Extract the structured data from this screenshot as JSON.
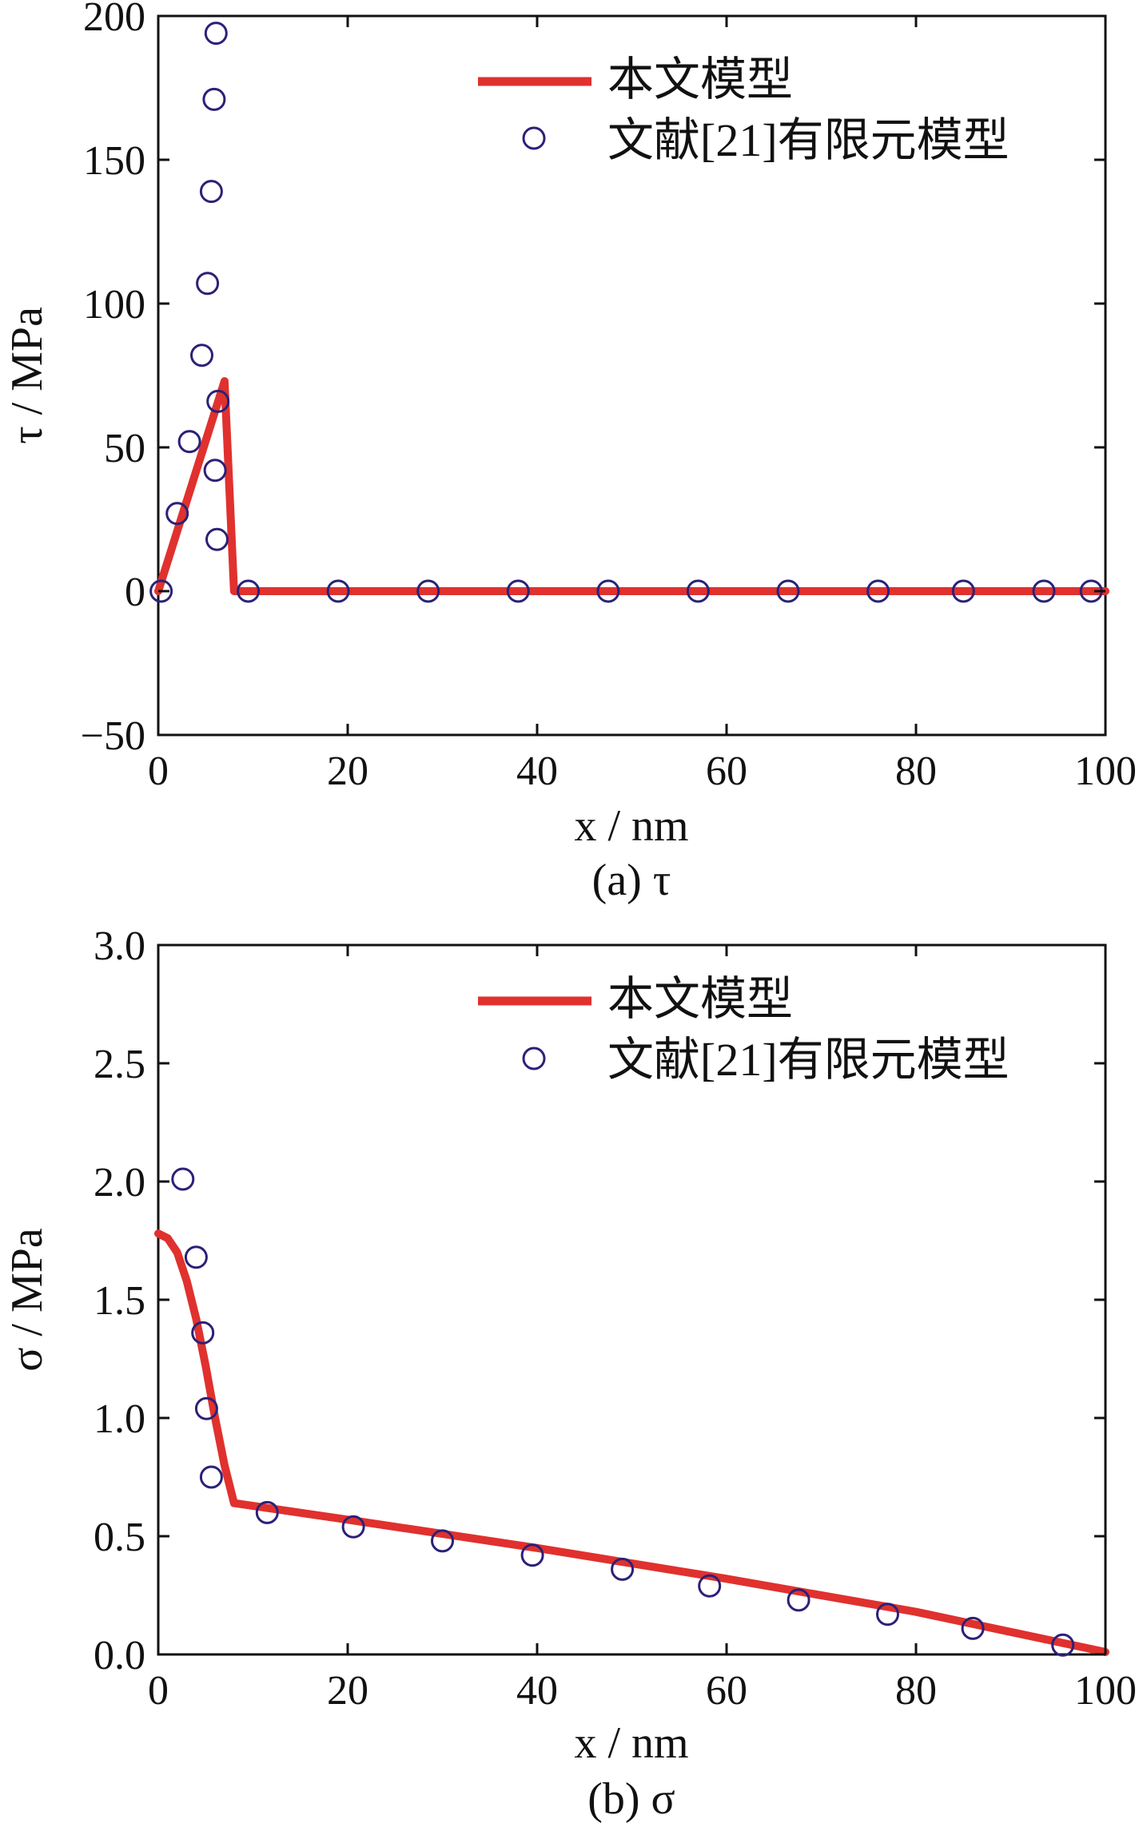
{
  "colors": {
    "model_line": "#e0312e",
    "fem_marker": "#2b2178",
    "axis": "#111111"
  },
  "chart_data": [
    {
      "type": "line",
      "caption": "(a) τ",
      "xlabel": "x / nm",
      "ylabel": "τ / MPa",
      "xlim": [
        0,
        100
      ],
      "ylim": [
        -50,
        200
      ],
      "xticks": [
        "0",
        "20",
        "40",
        "60",
        "80",
        "100"
      ],
      "yticks": [
        "−50",
        "0",
        "50",
        "100",
        "150",
        "200"
      ],
      "grid": false,
      "legend_position": "top-right",
      "series": [
        {
          "name": "本文模型",
          "style": "line",
          "x": [
            0,
            7,
            8,
            100
          ],
          "y": [
            0,
            73,
            0,
            0
          ]
        },
        {
          "name": "文献[21]有限元模型",
          "style": "marker",
          "x": [
            0.3,
            2,
            3.3,
            4.6,
            5.2,
            5.6,
            5.9,
            6.1,
            6.3,
            6.0,
            6.2,
            9.5,
            19,
            28.5,
            38,
            47.5,
            57,
            66.5,
            76,
            85,
            93.5,
            98.5
          ],
          "y": [
            0,
            27,
            52,
            82,
            107,
            139,
            171,
            194,
            66,
            42,
            18,
            0,
            0,
            0,
            0,
            0,
            0,
            0,
            0,
            0,
            0,
            0
          ]
        }
      ]
    },
    {
      "type": "line",
      "caption": "(b) σ",
      "xlabel": "x / nm",
      "ylabel": "σ / MPa",
      "xlim": [
        0,
        100
      ],
      "ylim": [
        0,
        3
      ],
      "xticks": [
        "0",
        "20",
        "40",
        "60",
        "80",
        "100"
      ],
      "yticks": [
        "0.0",
        "0.5",
        "1.0",
        "1.5",
        "2.0",
        "2.5",
        "3.0"
      ],
      "grid": false,
      "legend_position": "top-right",
      "series": [
        {
          "name": "本文模型",
          "style": "line",
          "x": [
            0,
            1,
            2,
            3,
            4,
            5,
            6,
            7,
            8,
            20,
            40,
            60,
            80,
            100
          ],
          "y": [
            1.78,
            1.76,
            1.7,
            1.58,
            1.42,
            1.22,
            1.0,
            0.8,
            0.64,
            0.57,
            0.45,
            0.32,
            0.18,
            0.01
          ]
        },
        {
          "name": "文献[21]有限元模型",
          "style": "marker",
          "x": [
            2.6,
            4.0,
            4.7,
            5.1,
            5.6,
            11.5,
            20.6,
            30,
            39.5,
            49,
            58.2,
            67.6,
            77,
            86,
            95.5
          ],
          "y": [
            2.01,
            1.68,
            1.36,
            1.04,
            0.75,
            0.6,
            0.54,
            0.48,
            0.42,
            0.36,
            0.29,
            0.23,
            0.17,
            0.11,
            0.04
          ]
        }
      ]
    }
  ]
}
